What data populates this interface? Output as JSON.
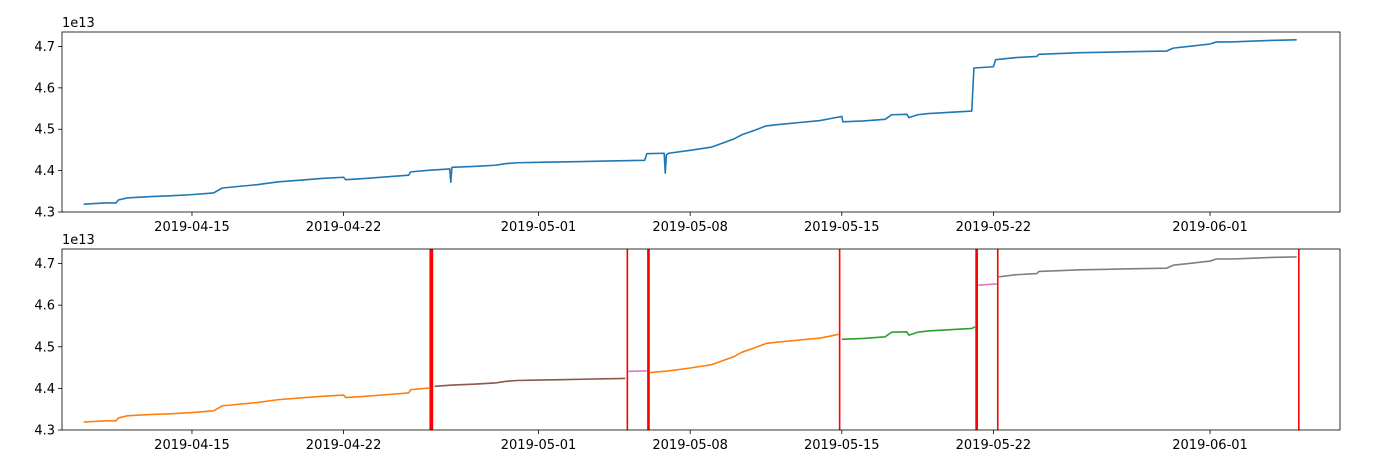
{
  "chart_data": [
    {
      "type": "line",
      "title": "",
      "xlabel": "",
      "ylabel": "",
      "y_offset_label": "1e13",
      "x_is_date": true,
      "xlim": [
        "2019-04-09",
        "2019-06-07"
      ],
      "ylim": [
        4.3,
        4.735
      ],
      "x_ticks": [
        "2019-04-15",
        "2019-04-22",
        "2019-05-01",
        "2019-05-08",
        "2019-05-15",
        "2019-05-22",
        "2019-06-01"
      ],
      "y_ticks": [
        "4.3",
        "4.4",
        "4.5",
        "4.6",
        "4.7"
      ],
      "grid": false,
      "series": [
        {
          "color": "#1f77b4",
          "points": [
            [
              "2019-04-10",
              4.319
            ],
            [
              "2019-04-11",
              4.322
            ],
            [
              "2019-04-11.5",
              4.322
            ],
            [
              "2019-04-11.6",
              4.329
            ],
            [
              "2019-04-12",
              4.334
            ],
            [
              "2019-04-13",
              4.337
            ],
            [
              "2019-04-14",
              4.339
            ],
            [
              "2019-04-15",
              4.342
            ],
            [
              "2019-04-16",
              4.346
            ],
            [
              "2019-04-16.4",
              4.358
            ],
            [
              "2019-04-17",
              4.361
            ],
            [
              "2019-04-18",
              4.366
            ],
            [
              "2019-04-19",
              4.373
            ],
            [
              "2019-04-20",
              4.377
            ],
            [
              "2019-04-21",
              4.381
            ],
            [
              "2019-04-22",
              4.384
            ],
            [
              "2019-04-22.1",
              4.378
            ],
            [
              "2019-04-23",
              4.381
            ],
            [
              "2019-04-24",
              4.385
            ],
            [
              "2019-04-25",
              4.389
            ],
            [
              "2019-04-25.1",
              4.397
            ],
            [
              "2019-04-26",
              4.401
            ],
            [
              "2019-04-26.9",
              4.404
            ],
            [
              "2019-04-26.95",
              4.372
            ],
            [
              "2019-04-27",
              4.408
            ],
            [
              "2019-04-28",
              4.41
            ],
            [
              "2019-04-29",
              4.413
            ],
            [
              "2019-04-29.5",
              4.417
            ],
            [
              "2019-04-30",
              4.419
            ],
            [
              "2019-05-01",
              4.42
            ],
            [
              "2019-05-02",
              4.421
            ],
            [
              "2019-05-03",
              4.422
            ],
            [
              "2019-05-04",
              4.423
            ],
            [
              "2019-05-05",
              4.424
            ],
            [
              "2019-05-05.9",
              4.425
            ],
            [
              "2019-05-06",
              4.441
            ],
            [
              "2019-05-06.8",
              4.442
            ],
            [
              "2019-05-06.85",
              4.394
            ],
            [
              "2019-05-06.9",
              4.438
            ],
            [
              "2019-05-07",
              4.442
            ],
            [
              "2019-05-08",
              4.449
            ],
            [
              "2019-05-09",
              4.457
            ],
            [
              "2019-05-10",
              4.476
            ],
            [
              "2019-05-10.4",
              4.487
            ],
            [
              "2019-05-11",
              4.498
            ],
            [
              "2019-05-11.5",
              4.508
            ],
            [
              "2019-05-12",
              4.511
            ],
            [
              "2019-05-13",
              4.516
            ],
            [
              "2019-05-14",
              4.521
            ],
            [
              "2019-05-14.5",
              4.526
            ],
            [
              "2019-05-15",
              4.531
            ],
            [
              "2019-05-15.05",
              4.518
            ],
            [
              "2019-05-16",
              4.52
            ],
            [
              "2019-05-17",
              4.524
            ],
            [
              "2019-05-17.3",
              4.535
            ],
            [
              "2019-05-18",
              4.536
            ],
            [
              "2019-05-18.1",
              4.528
            ],
            [
              "2019-05-18.5",
              4.535
            ],
            [
              "2019-05-19",
              4.538
            ],
            [
              "2019-05-20",
              4.541
            ],
            [
              "2019-05-21",
              4.544
            ],
            [
              "2019-05-21.1",
              4.648
            ],
            [
              "2019-05-22",
              4.651
            ],
            [
              "2019-05-22.1",
              4.668
            ],
            [
              "2019-05-23",
              4.673
            ],
            [
              "2019-05-24",
              4.676
            ],
            [
              "2019-05-24.1",
              4.681
            ],
            [
              "2019-05-25",
              4.683
            ],
            [
              "2019-05-26",
              4.685
            ],
            [
              "2019-05-27",
              4.686
            ],
            [
              "2019-05-28",
              4.687
            ],
            [
              "2019-05-29",
              4.688
            ],
            [
              "2019-05-30",
              4.689
            ],
            [
              "2019-05-30.3",
              4.696
            ],
            [
              "2019-05-31",
              4.7
            ],
            [
              "2019-06-01",
              4.706
            ],
            [
              "2019-06-01.3",
              4.711
            ],
            [
              "2019-06-02",
              4.711
            ],
            [
              "2019-06-03",
              4.713
            ],
            [
              "2019-06-04",
              4.715
            ],
            [
              "2019-06-05",
              4.716
            ]
          ]
        }
      ]
    },
    {
      "type": "line",
      "title": "",
      "xlabel": "",
      "ylabel": "",
      "y_offset_label": "1e13",
      "x_is_date": true,
      "xlim": [
        "2019-04-09",
        "2019-06-07"
      ],
      "ylim": [
        4.3,
        4.735
      ],
      "x_ticks": [
        "2019-04-15",
        "2019-04-22",
        "2019-05-01",
        "2019-05-08",
        "2019-05-15",
        "2019-05-22",
        "2019-06-01"
      ],
      "y_ticks": [
        "4.3",
        "4.4",
        "4.5",
        "4.6",
        "4.7"
      ],
      "grid": false,
      "vertical_lines": {
        "color": "#ff0000",
        "x": [
          "2019-04-26",
          "2019-04-26.05",
          "2019-04-26.1",
          "2019-05-05.1",
          "2019-05-06.05",
          "2019-05-06.1",
          "2019-05-14.9",
          "2019-05-21.2",
          "2019-05-21.25",
          "2019-05-22.2",
          "2019-06-05.1"
        ]
      },
      "series": [
        {
          "color": "#ff7f0e",
          "points": [
            [
              "2019-04-10",
              4.319
            ],
            [
              "2019-04-11",
              4.322
            ],
            [
              "2019-04-11.5",
              4.322
            ],
            [
              "2019-04-11.6",
              4.329
            ],
            [
              "2019-04-12",
              4.334
            ],
            [
              "2019-04-13",
              4.337
            ],
            [
              "2019-04-14",
              4.339
            ],
            [
              "2019-04-15",
              4.342
            ],
            [
              "2019-04-16",
              4.346
            ],
            [
              "2019-04-16.4",
              4.358
            ],
            [
              "2019-04-17",
              4.361
            ],
            [
              "2019-04-18",
              4.366
            ],
            [
              "2019-04-19",
              4.373
            ],
            [
              "2019-04-20",
              4.377
            ],
            [
              "2019-04-21",
              4.381
            ],
            [
              "2019-04-22",
              4.384
            ],
            [
              "2019-04-22.1",
              4.378
            ],
            [
              "2019-04-23",
              4.381
            ],
            [
              "2019-04-24",
              4.385
            ],
            [
              "2019-04-25",
              4.389
            ],
            [
              "2019-04-25.1",
              4.397
            ],
            [
              "2019-04-26",
              4.401
            ]
          ]
        },
        {
          "color": "#8c564b",
          "points": [
            [
              "2019-04-26.2",
              4.405
            ],
            [
              "2019-04-27",
              4.408
            ],
            [
              "2019-04-28",
              4.41
            ],
            [
              "2019-04-29",
              4.413
            ],
            [
              "2019-04-29.5",
              4.417
            ],
            [
              "2019-04-30",
              4.419
            ],
            [
              "2019-05-01",
              4.42
            ],
            [
              "2019-05-02",
              4.421
            ],
            [
              "2019-05-03",
              4.422
            ],
            [
              "2019-05-04",
              4.423
            ],
            [
              "2019-05-05",
              4.424
            ]
          ]
        },
        {
          "color": "#e377c2",
          "points": [
            [
              "2019-05-05.15",
              4.441
            ],
            [
              "2019-05-06",
              4.442
            ]
          ]
        },
        {
          "color": "#ff7f0e",
          "points": [
            [
              "2019-05-06.15",
              4.438
            ],
            [
              "2019-05-07",
              4.442
            ],
            [
              "2019-05-08",
              4.449
            ],
            [
              "2019-05-09",
              4.457
            ],
            [
              "2019-05-10",
              4.476
            ],
            [
              "2019-05-10.4",
              4.487
            ],
            [
              "2019-05-11",
              4.498
            ],
            [
              "2019-05-11.5",
              4.508
            ],
            [
              "2019-05-12",
              4.511
            ],
            [
              "2019-05-13",
              4.516
            ],
            [
              "2019-05-14",
              4.521
            ],
            [
              "2019-05-14.5",
              4.526
            ],
            [
              "2019-05-14.85",
              4.53
            ]
          ]
        },
        {
          "color": "#2ca02c",
          "points": [
            [
              "2019-05-15",
              4.518
            ],
            [
              "2019-05-16",
              4.52
            ],
            [
              "2019-05-17",
              4.524
            ],
            [
              "2019-05-17.3",
              4.535
            ],
            [
              "2019-05-18",
              4.536
            ],
            [
              "2019-05-18.1",
              4.528
            ],
            [
              "2019-05-18.5",
              4.535
            ],
            [
              "2019-05-19",
              4.538
            ],
            [
              "2019-05-20",
              4.541
            ],
            [
              "2019-05-21",
              4.544
            ],
            [
              "2019-05-21.15",
              4.548
            ]
          ]
        },
        {
          "color": "#e377c2",
          "points": [
            [
              "2019-05-21.3",
              4.648
            ],
            [
              "2019-05-22.15",
              4.651
            ]
          ]
        },
        {
          "color": "#7f7f7f",
          "points": [
            [
              "2019-05-22.25",
              4.668
            ],
            [
              "2019-05-23",
              4.673
            ],
            [
              "2019-05-24",
              4.676
            ],
            [
              "2019-05-24.1",
              4.681
            ],
            [
              "2019-05-25",
              4.683
            ],
            [
              "2019-05-26",
              4.685
            ],
            [
              "2019-05-27",
              4.686
            ],
            [
              "2019-05-28",
              4.687
            ],
            [
              "2019-05-29",
              4.688
            ],
            [
              "2019-05-30",
              4.689
            ],
            [
              "2019-05-30.3",
              4.696
            ],
            [
              "2019-05-31",
              4.7
            ],
            [
              "2019-06-01",
              4.706
            ],
            [
              "2019-06-01.3",
              4.711
            ],
            [
              "2019-06-02",
              4.711
            ],
            [
              "2019-06-03",
              4.713
            ],
            [
              "2019-06-04",
              4.715
            ],
            [
              "2019-06-05",
              4.716
            ]
          ]
        }
      ]
    }
  ]
}
